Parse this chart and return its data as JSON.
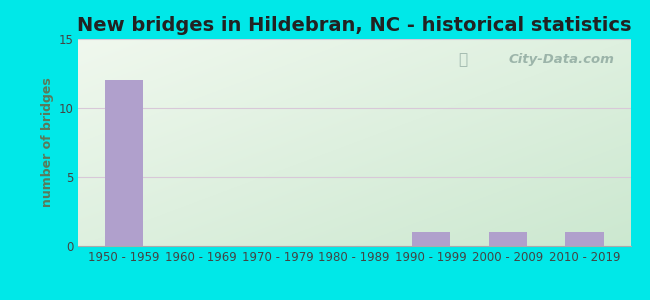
{
  "title": "New bridges in Hildebran, NC - historical statistics",
  "categories": [
    "1950 - 1959",
    "1960 - 1969",
    "1970 - 1979",
    "1980 - 1989",
    "1990 - 1999",
    "2000 - 2009",
    "2010 - 2019"
  ],
  "values": [
    12,
    0,
    0,
    0,
    1,
    1,
    1
  ],
  "bar_color": "#b0a0cc",
  "ylim": [
    0,
    15
  ],
  "yticks": [
    0,
    5,
    10,
    15
  ],
  "ylabel": "number of bridges",
  "background_outer": "#00e8e8",
  "grid_color": "#d8c8d8",
  "title_fontsize": 14,
  "axis_label_fontsize": 9,
  "tick_fontsize": 8.5,
  "watermark": "City-Data.com",
  "grad_top_left": "#f0f8ee",
  "grad_bottom_right": "#cce8d0"
}
